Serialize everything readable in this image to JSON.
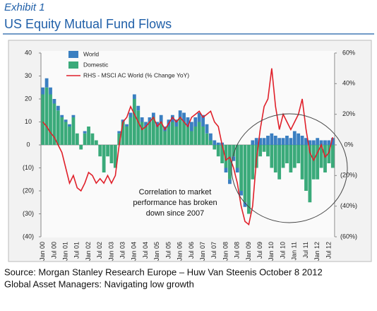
{
  "header": {
    "exhibit": "Exhibit 1",
    "title": "US Equity Mutual Fund Flows"
  },
  "chart_data": {
    "type": "bar_line",
    "categories": [
      "Jan 00",
      null,
      null,
      "Jul 00",
      null,
      null,
      "Jan 01",
      null,
      null,
      "Jul 01",
      null,
      null,
      "Jan 02",
      null,
      null,
      "Jul 02",
      null,
      null,
      "Jan 03",
      null,
      null,
      "Jul 03",
      null,
      null,
      "Jan 04",
      null,
      null,
      "Jul 04",
      null,
      null,
      "Jan 05",
      null,
      null,
      "Jul 05",
      null,
      null,
      "Jan 06",
      null,
      null,
      "Jul 06",
      null,
      null,
      "Jan 07",
      null,
      null,
      "Jul 07",
      null,
      null,
      "Jan 08",
      null,
      null,
      "Jul 08",
      null,
      null,
      "Jan 09",
      null,
      null,
      "Jul 09",
      null,
      null,
      "Jan 10",
      null,
      null,
      "Jul 10",
      null,
      null,
      "Jan 11",
      null,
      null,
      "Jul 11",
      null,
      null,
      "Jan 12",
      null,
      null,
      "Jul 12",
      null
    ],
    "series": [
      {
        "name": "World",
        "color": "#3a7fc1",
        "stack": true,
        "values": [
          3,
          4,
          3,
          2,
          2,
          1,
          1,
          1,
          1,
          0,
          0,
          1,
          0,
          0,
          0,
          0,
          0,
          0,
          0,
          0,
          1,
          1,
          1,
          2,
          2,
          2,
          2,
          2,
          2,
          2,
          2,
          3,
          2,
          3,
          3,
          3,
          3,
          4,
          4,
          4,
          4,
          4,
          5,
          4,
          3,
          2,
          1,
          1,
          -2,
          -2,
          -2,
          -2,
          -2,
          -2,
          0,
          2,
          3,
          3,
          3,
          4,
          5,
          4,
          3,
          3,
          4,
          3,
          6,
          5,
          4,
          3,
          2,
          2,
          3,
          2,
          2,
          2,
          3
        ]
      },
      {
        "name": "Domestic",
        "color": "#3aaa7a",
        "stack": true,
        "values": [
          22,
          25,
          22,
          18,
          15,
          12,
          10,
          8,
          12,
          5,
          -2,
          5,
          8,
          5,
          2,
          -5,
          -12,
          -5,
          -8,
          -10,
          5,
          10,
          8,
          12,
          20,
          15,
          10,
          8,
          10,
          12,
          8,
          10,
          6,
          8,
          10,
          8,
          12,
          10,
          8,
          6,
          8,
          10,
          8,
          5,
          2,
          -2,
          -5,
          -8,
          -10,
          -15,
          -5,
          -10,
          -20,
          -25,
          -30,
          -15,
          -10,
          -5,
          -3,
          -5,
          -10,
          -12,
          -15,
          -10,
          -8,
          -12,
          -10,
          -8,
          -15,
          -20,
          -25,
          -15,
          -15,
          -10,
          -12,
          -8,
          -10
        ]
      },
      {
        "name": "RHS - MSCI AC World (% Change YoY)",
        "color": "#e0202a",
        "axis": "y2",
        "line": true,
        "values": [
          15,
          12,
          8,
          5,
          0,
          -5,
          -15,
          -25,
          -20,
          -28,
          -30,
          -25,
          -18,
          -20,
          -25,
          -22,
          -25,
          -20,
          -25,
          -20,
          0,
          15,
          18,
          25,
          20,
          15,
          10,
          12,
          15,
          18,
          12,
          15,
          10,
          14,
          18,
          15,
          18,
          15,
          12,
          18,
          20,
          22,
          18,
          20,
          22,
          15,
          12,
          0,
          -10,
          -8,
          -15,
          -25,
          -40,
          -50,
          -52,
          -40,
          -10,
          10,
          25,
          30,
          50,
          25,
          10,
          20,
          15,
          10,
          15,
          20,
          30,
          10,
          -5,
          -10,
          -5,
          0,
          -8,
          -5,
          5
        ]
      }
    ],
    "ylim": [
      -40,
      40
    ],
    "yticks": [
      40,
      30,
      20,
      10,
      0,
      {
        "value": -10,
        "label": "(10)"
      },
      {
        "value": -20,
        "label": "(20)"
      },
      {
        "value": -30,
        "label": "(30)"
      },
      {
        "value": -40,
        "label": "(40)"
      }
    ],
    "y2lim": [
      -60,
      60
    ],
    "y2ticks": [
      {
        "value": 60,
        "label": "60%"
      },
      {
        "value": 40,
        "label": "40%"
      },
      {
        "value": 20,
        "label": "20%"
      },
      {
        "value": 0,
        "label": "0%"
      },
      {
        "value": -20,
        "label": "(20%)"
      },
      {
        "value": -40,
        "label": "(40%)"
      },
      {
        "value": -60,
        "label": "(60%)"
      }
    ],
    "annotation": [
      "Correlation to market",
      "performance has broken",
      "down since 2007"
    ]
  },
  "source": [
    "Source: Morgan Stanley Research Europe – Huw Van Steenis October 8 2012",
    "Global Asset Managers: Navigating low growth"
  ]
}
